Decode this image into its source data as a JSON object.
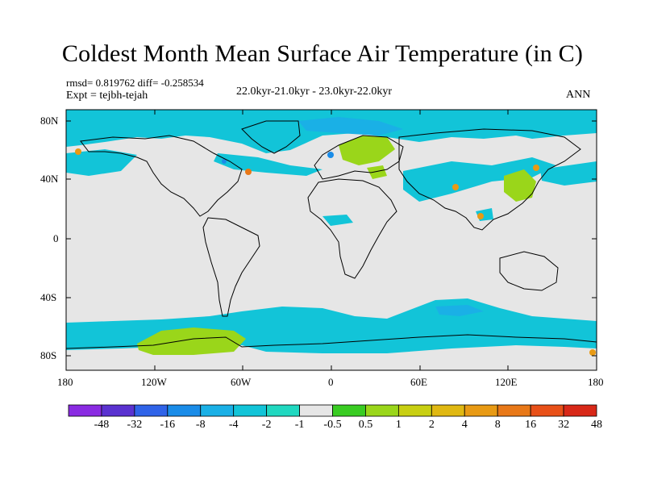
{
  "header": {
    "title": "Coldest Month Mean Surface Air Temperature (in C)",
    "stats": "rmsd= 0.819762 diff= -0.258534",
    "expt": "Expt = tejbh-tejah",
    "period": "22.0kyr-21.0kyr - 23.0kyr-22.0kyr",
    "season": "ANN"
  },
  "map": {
    "projection": "cylindrical equidistant",
    "lon_range": [
      -180,
      180
    ],
    "lat_range": [
      -90,
      90
    ],
    "background_color": "#e6e6e6",
    "coastline_color": "#000000",
    "lat_labels": [
      "80N",
      "40N",
      "0",
      "40S",
      "80S"
    ],
    "lon_labels": [
      "180",
      "120W",
      "60W",
      "0",
      "60E",
      "120E",
      "180"
    ]
  },
  "colorbar": {
    "colors": [
      "#8a2be2",
      "#5a32d0",
      "#2f63e8",
      "#1a8ce8",
      "#1ab0e6",
      "#12c4d8",
      "#20d8c0",
      "#e6e6e6",
      "#39cc22",
      "#9ad61a",
      "#c8cf12",
      "#e0b812",
      "#e89a14",
      "#e87818",
      "#e85018",
      "#d82818"
    ],
    "labels": [
      "-48",
      "-32",
      "-16",
      "-8",
      "-4",
      "-2",
      "-1",
      "-0.5",
      "0.5",
      "1",
      "2",
      "4",
      "8",
      "16",
      "32",
      "48"
    ]
  },
  "fields": [
    {
      "name": "arctic-negative-band",
      "color": "#12c4d8"
    },
    {
      "name": "southern-ocean-negative-band",
      "color": "#12c4d8"
    },
    {
      "name": "antarctic-positive-patch",
      "color": "#9ad61a"
    },
    {
      "name": "europe-positive-patch",
      "color": "#9ad61a"
    },
    {
      "name": "east-asia-positive-patch",
      "color": "#9ad61a"
    },
    {
      "name": "warm-spots",
      "color": "#e89a14"
    },
    {
      "name": "cold-spots",
      "color": "#1a8ce8"
    }
  ]
}
